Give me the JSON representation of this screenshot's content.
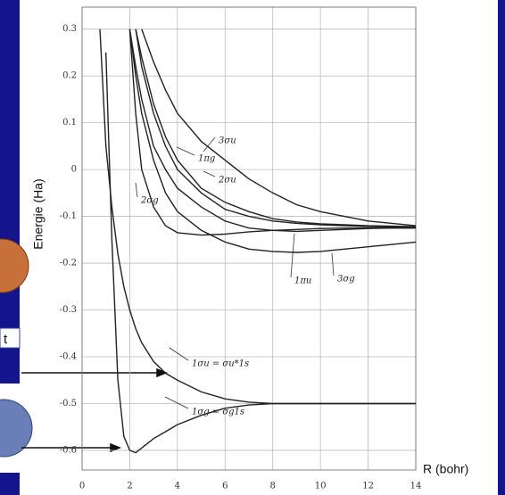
{
  "sidebar": {
    "text": "t"
  },
  "chart_data": {
    "type": "line",
    "y_label": "Energie (Ha)",
    "x_label": "R (bohr)",
    "xlim": [
      0,
      14
    ],
    "ylim": [
      -0.642,
      0.347
    ],
    "xticks": [
      0,
      2,
      4,
      6,
      8,
      10,
      12,
      14
    ],
    "yticks": [
      0.3,
      0.2,
      0.1,
      0,
      -0.1,
      -0.2,
      -0.3,
      -0.4,
      -0.5,
      -0.6
    ],
    "grid": true,
    "x": [
      0.75,
      1,
      1.25,
      1.5,
      1.75,
      2,
      2.25,
      2.5,
      3,
      3.5,
      4,
      5,
      6,
      7,
      8,
      9,
      10,
      11,
      12,
      13,
      14
    ],
    "series": [
      {
        "name": "1σg = σg1s",
        "color": "#222222",
        "values": [
          null,
          0.25,
          -0.15,
          -0.45,
          -0.57,
          -0.6,
          -0.605,
          -0.595,
          -0.575,
          -0.56,
          -0.545,
          -0.525,
          -0.51,
          -0.503,
          -0.5,
          -0.5,
          -0.5,
          -0.5,
          -0.5,
          -0.5,
          -0.5
        ]
      },
      {
        "name": "1σu = σu*1s",
        "color": "#222222",
        "values": [
          0.3,
          0.05,
          -0.08,
          -0.18,
          -0.25,
          -0.3,
          -0.34,
          -0.37,
          -0.41,
          -0.435,
          -0.45,
          -0.475,
          -0.49,
          -0.497,
          -0.5,
          -0.5,
          -0.5,
          -0.5,
          -0.5,
          -0.5,
          -0.5
        ]
      },
      {
        "name": "2σg",
        "color": "#222222",
        "values": [
          null,
          null,
          null,
          null,
          null,
          0.3,
          0.12,
          0.0,
          -0.08,
          -0.12,
          -0.135,
          -0.14,
          -0.138,
          -0.133,
          -0.13,
          -0.128,
          -0.126,
          -0.125,
          -0.125,
          -0.125,
          -0.125
        ]
      },
      {
        "name": "3σg",
        "color": "#222222",
        "values": [
          null,
          null,
          null,
          null,
          null,
          0.3,
          0.2,
          0.12,
          0.02,
          -0.05,
          -0.09,
          -0.13,
          -0.155,
          -0.17,
          -0.175,
          -0.177,
          -0.175,
          -0.17,
          -0.165,
          -0.16,
          -0.155
        ]
      },
      {
        "name": "1πu",
        "color": "#222222",
        "values": [
          null,
          null,
          null,
          null,
          null,
          0.3,
          0.22,
          0.15,
          0.05,
          0.0,
          -0.04,
          -0.08,
          -0.11,
          -0.125,
          -0.13,
          -0.132,
          -0.13,
          -0.128,
          -0.126,
          -0.125,
          -0.125
        ]
      },
      {
        "name": "2σu",
        "color": "#222222",
        "values": [
          null,
          null,
          null,
          null,
          null,
          null,
          0.3,
          0.22,
          0.12,
          0.05,
          0.0,
          -0.05,
          -0.085,
          -0.1,
          -0.11,
          -0.115,
          -0.118,
          -0.12,
          -0.122,
          -0.123,
          -0.124
        ]
      },
      {
        "name": "1πg",
        "color": "#222222",
        "values": [
          null,
          null,
          null,
          null,
          null,
          null,
          0.3,
          0.24,
          0.14,
          0.07,
          0.02,
          -0.04,
          -0.07,
          -0.09,
          -0.105,
          -0.112,
          -0.116,
          -0.118,
          -0.12,
          -0.121,
          -0.122
        ]
      },
      {
        "name": "3σu",
        "color": "#222222",
        "values": [
          null,
          null,
          null,
          null,
          null,
          null,
          null,
          0.3,
          0.23,
          0.17,
          0.12,
          0.06,
          0.02,
          -0.02,
          -0.05,
          -0.075,
          -0.09,
          -0.1,
          -0.11,
          -0.115,
          -0.12
        ]
      }
    ]
  }
}
